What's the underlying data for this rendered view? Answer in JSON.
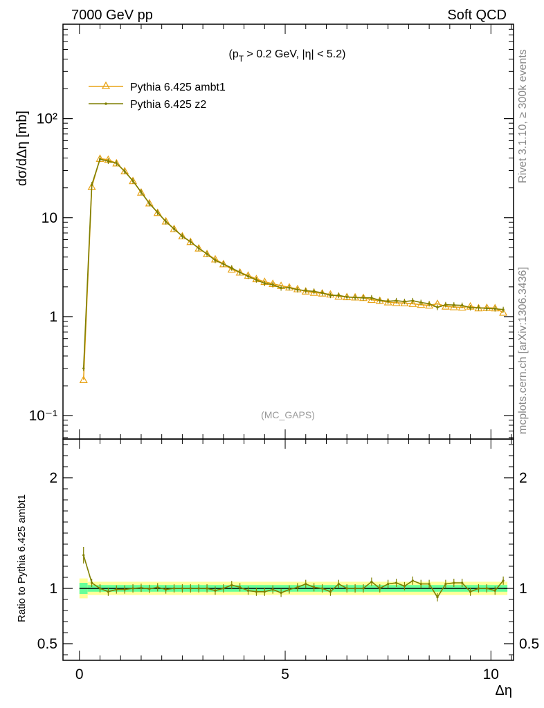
{
  "header": {
    "left": "7000 GeV pp",
    "right": "Soft QCD"
  },
  "side_text": {
    "rivet": "Rivet 3.1.10, ≥ 300k events",
    "mcplots": "mcplots.cern.ch [arXiv:1306.3436]"
  },
  "cut_label": "(p_T > 0.2 GeV, |η| < 5.2)",
  "analysis_label": "(MC_GAPS)",
  "chart_data": [
    {
      "type": "line",
      "title": "",
      "xlabel": "Δη",
      "ylabel": "dσ/dΔη [mb]",
      "yscale": "log",
      "xlim": [
        -0.4,
        10.55
      ],
      "ylim": [
        0.058,
        900
      ],
      "xticks": [
        "0",
        "5",
        "10"
      ],
      "yticks": [
        "10⁻¹",
        "1",
        "10",
        "10²"
      ],
      "legend_position": "top-left",
      "series": [
        {
          "name": "Pythia 6.425 ambt1",
          "color": "#e8a317",
          "marker": "open-triangle",
          "x": [
            0.1,
            0.3,
            0.5,
            0.7,
            0.9,
            1.1,
            1.3,
            1.5,
            1.7,
            1.9,
            2.1,
            2.3,
            2.5,
            2.7,
            2.9,
            3.1,
            3.3,
            3.5,
            3.7,
            3.9,
            4.1,
            4.3,
            4.5,
            4.7,
            4.9,
            5.1,
            5.3,
            5.5,
            5.7,
            5.9,
            6.1,
            6.3,
            6.5,
            6.7,
            6.9,
            7.1,
            7.3,
            7.5,
            7.7,
            7.9,
            8.1,
            8.3,
            8.5,
            8.7,
            8.9,
            9.1,
            9.3,
            9.5,
            9.7,
            9.9,
            10.1,
            10.3
          ],
          "values": [
            0.23,
            20.5,
            39.5,
            38.5,
            35.5,
            29.5,
            23.5,
            18.0,
            14.0,
            11.2,
            9.2,
            7.7,
            6.5,
            5.7,
            4.9,
            4.3,
            3.8,
            3.4,
            3.0,
            2.8,
            2.6,
            2.4,
            2.25,
            2.15,
            2.05,
            1.98,
            1.9,
            1.8,
            1.75,
            1.72,
            1.68,
            1.6,
            1.58,
            1.57,
            1.55,
            1.48,
            1.45,
            1.4,
            1.38,
            1.37,
            1.35,
            1.32,
            1.3,
            1.35,
            1.27,
            1.25,
            1.24,
            1.27,
            1.22,
            1.23,
            1.22,
            1.1
          ]
        },
        {
          "name": "Pythia 6.425 z2",
          "color": "#7f7f00",
          "marker": "small-dot",
          "x": [
            0.1,
            0.3,
            0.5,
            0.7,
            0.9,
            1.1,
            1.3,
            1.5,
            1.7,
            1.9,
            2.1,
            2.3,
            2.5,
            2.7,
            2.9,
            3.1,
            3.3,
            3.5,
            3.7,
            3.9,
            4.1,
            4.3,
            4.5,
            4.7,
            4.9,
            5.1,
            5.3,
            5.5,
            5.7,
            5.9,
            6.1,
            6.3,
            6.5,
            6.7,
            6.9,
            7.1,
            7.3,
            7.5,
            7.7,
            7.9,
            8.1,
            8.3,
            8.5,
            8.7,
            8.9,
            9.1,
            9.3,
            9.5,
            9.7,
            9.9,
            10.1,
            10.3
          ],
          "values": [
            0.3,
            21.5,
            39.0,
            37.2,
            35.5,
            29.3,
            23.5,
            18.1,
            13.9,
            11.3,
            9.1,
            7.7,
            6.5,
            5.7,
            4.9,
            4.3,
            3.7,
            3.4,
            3.1,
            2.8,
            2.55,
            2.35,
            2.17,
            2.1,
            1.95,
            1.96,
            1.87,
            1.83,
            1.8,
            1.74,
            1.64,
            1.64,
            1.58,
            1.56,
            1.55,
            1.55,
            1.46,
            1.43,
            1.45,
            1.42,
            1.45,
            1.39,
            1.35,
            1.24,
            1.32,
            1.31,
            1.3,
            1.23,
            1.23,
            1.21,
            1.2,
            1.18
          ]
        }
      ]
    },
    {
      "type": "line",
      "title": "",
      "xlabel": "Δη",
      "ylabel": "Ratio to Pythia 6.425 ambt1",
      "xlim": [
        -0.4,
        10.55
      ],
      "ylim": [
        0.35,
        2.35
      ],
      "xticks": [
        "0",
        "5",
        "10"
      ],
      "yticks": [
        "0.5",
        "1",
        "2"
      ],
      "reference_band": {
        "green_halfwidth": 0.03,
        "yellow_halfwidth": 0.06,
        "first_bin_green": 0.05,
        "first_bin_yellow": 0.09
      },
      "series": [
        {
          "name": "Pythia 6.425 z2",
          "color": "#7f7f00",
          "x": [
            0.1,
            0.3,
            0.5,
            0.7,
            0.9,
            1.1,
            1.3,
            1.5,
            1.7,
            1.9,
            2.1,
            2.3,
            2.5,
            2.7,
            2.9,
            3.1,
            3.3,
            3.5,
            3.7,
            3.9,
            4.1,
            4.3,
            4.5,
            4.7,
            4.9,
            5.1,
            5.3,
            5.5,
            5.7,
            5.9,
            6.1,
            6.3,
            6.5,
            6.7,
            6.9,
            7.1,
            7.3,
            7.5,
            7.7,
            7.9,
            8.1,
            8.3,
            8.5,
            8.7,
            8.9,
            9.1,
            9.3,
            9.5,
            9.7,
            9.9,
            10.1,
            10.3
          ],
          "values": [
            1.3,
            1.05,
            1.0,
            0.97,
            0.99,
            0.99,
            1.0,
            1.005,
            0.995,
            1.01,
            0.99,
            1.0,
            1.0,
            1.0,
            1.0,
            1.0,
            0.98,
            1.0,
            1.03,
            1.01,
            0.98,
            0.97,
            0.97,
            0.99,
            0.96,
            0.99,
            1.01,
            1.04,
            1.01,
            1.0,
            0.97,
            1.04,
            1.0,
            1.0,
            1.0,
            1.06,
            1.0,
            1.04,
            1.05,
            1.02,
            1.07,
            1.04,
            1.04,
            0.92,
            1.04,
            1.05,
            1.05,
            0.97,
            1.0,
            1.0,
            0.98,
            1.07
          ]
        }
      ]
    }
  ]
}
